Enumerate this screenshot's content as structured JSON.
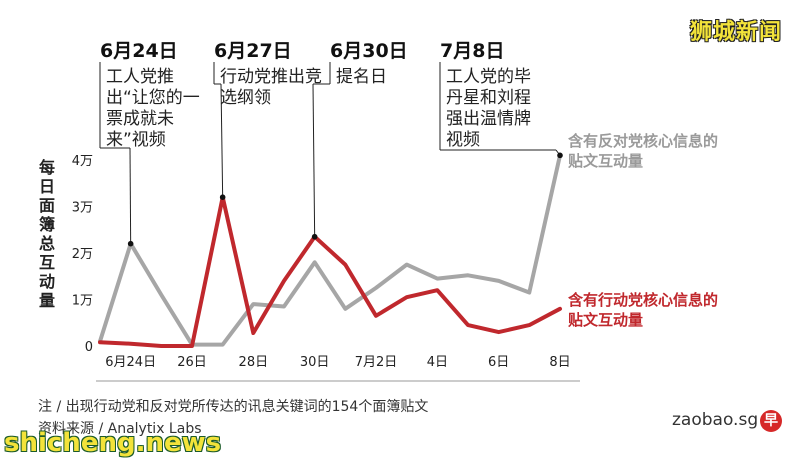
{
  "watermark_top": "狮城新闻",
  "watermark_bottom": "shicheng.news",
  "brand": {
    "site": "zaobao.sg",
    "logo_char": "早"
  },
  "ylabel": "每日面簿总互动量",
  "events": [
    {
      "date": "6月24日",
      "desc": "工人党推出“让您的一票成就未来”视频"
    },
    {
      "date": "6月27日",
      "desc": "行动党推出竞选纲领"
    },
    {
      "date": "6月30日",
      "desc": "提名日"
    },
    {
      "date": "7月8日",
      "desc": "工人党的毕丹星和刘程强出温情牌视频"
    }
  ],
  "legend": {
    "grey": [
      "含有反对党核心信息的",
      "贴文互动量"
    ],
    "red": [
      "含有行动党核心信息的",
      "贴文互动量"
    ]
  },
  "footnotes": {
    "note": "注 / 出现行动党和反对党所传达的讯息关键词的154个面簿贴文",
    "source": "资料来源 / Analytix Labs"
  },
  "colors": {
    "grey_series": "#a6a6a6",
    "red_series": "#c0282d"
  },
  "chart_data": {
    "type": "line",
    "x": [
      "6/23",
      "6/24",
      "6/25",
      "6/26",
      "6/27",
      "6/28",
      "6/29",
      "6/30",
      "7/1",
      "7/2",
      "7/3",
      "7/4",
      "7/5",
      "7/6",
      "7/7",
      "7/8"
    ],
    "xtick_labels": [
      "6月24日",
      "26日",
      "28日",
      "30日",
      "7月2日",
      "4日",
      "6日",
      "8日"
    ],
    "xtick_positions": [
      "6/24",
      "6/26",
      "6/28",
      "6/30",
      "7/2",
      "7/4",
      "7/6",
      "7/8"
    ],
    "ytick_labels": [
      "0",
      "1万",
      "2万",
      "3万",
      "4万"
    ],
    "ylim": [
      0,
      40000
    ],
    "series": [
      {
        "name": "含有反对党核心信息的贴文互动量",
        "color": "#a6a6a6",
        "values": [
          1000,
          22000,
          11000,
          300,
          300,
          9000,
          8500,
          18000,
          8000,
          12500,
          17500,
          14500,
          15200,
          14000,
          11500,
          41000
        ]
      },
      {
        "name": "含有行动党核心信息的贴文互动量",
        "color": "#c0282d",
        "values": [
          800,
          500,
          0,
          0,
          32000,
          2800,
          14000,
          23500,
          17500,
          6500,
          10500,
          12000,
          4500,
          3000,
          4500,
          8000
        ]
      }
    ],
    "event_markers": [
      {
        "x": "6/24",
        "series": 0
      },
      {
        "x": "6/27",
        "series": 1
      },
      {
        "x": "6/30",
        "series": 1
      },
      {
        "x": "7/8",
        "series": 0
      }
    ]
  }
}
